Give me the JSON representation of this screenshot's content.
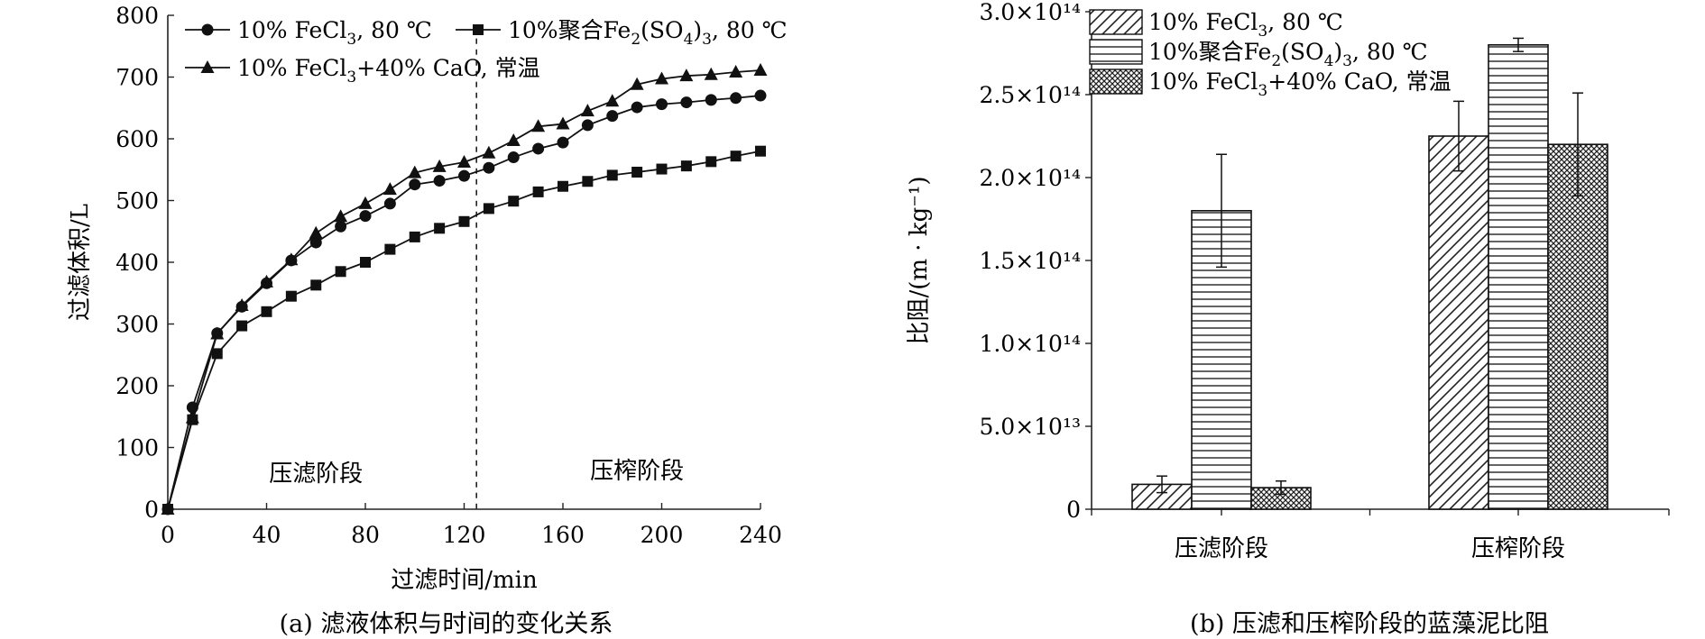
{
  "chart_data": [
    {
      "type": "line",
      "caption": "(a) 滤液体积与时间的变化关系",
      "xlabel": "过滤时间/min",
      "ylabel": "过滤体积/L",
      "xlim": [
        0,
        240
      ],
      "ylim": [
        0,
        800
      ],
      "xticks": [
        "0",
        "40",
        "80",
        "120",
        "160",
        "200",
        "240"
      ],
      "yticks": [
        "0",
        "100",
        "200",
        "300",
        "400",
        "500",
        "600",
        "700",
        "800"
      ],
      "divider_x": 125,
      "stage_labels": [
        "压滤阶段",
        "压榨阶段"
      ],
      "x": [
        0,
        10,
        20,
        30,
        40,
        50,
        60,
        70,
        80,
        90,
        100,
        110,
        120,
        130,
        140,
        150,
        160,
        170,
        180,
        190,
        200,
        210,
        220,
        230,
        240
      ],
      "series": [
        {
          "name": "10% FeCl3, 80 ℃",
          "legend": {
            "main": "10% FeCl",
            "sub": "3",
            "rest": ", 80 ℃"
          },
          "marker": "circle",
          "values": [
            0,
            165,
            285,
            328,
            366,
            403,
            432,
            458,
            475,
            495,
            526,
            532,
            540,
            553,
            570,
            584,
            594,
            622,
            637,
            651,
            656,
            659,
            663,
            666,
            670
          ]
        },
        {
          "name": "10%聚合Fe2(SO4)3, 80 ℃",
          "legend": {
            "p1": "10%聚合Fe",
            "s1": "2",
            "p2": "(SO",
            "s2": "4",
            "p3": ")",
            "s3": "3",
            "p4": ", 80 ℃"
          },
          "marker": "square",
          "values": [
            0,
            145,
            252,
            297,
            320,
            345,
            363,
            385,
            400,
            421,
            441,
            455,
            466,
            487,
            499,
            514,
            523,
            531,
            541,
            546,
            551,
            556,
            563,
            572,
            580
          ]
        },
        {
          "name": "10% FeCl3+40% CaO, 常温",
          "legend": {
            "main": "10% FeCl",
            "sub": "3",
            "rest": "+40% CaO, 常温"
          },
          "marker": "triangle",
          "values": [
            0,
            148,
            284,
            330,
            368,
            404,
            447,
            474,
            495,
            518,
            545,
            555,
            562,
            577,
            597,
            620,
            624,
            645,
            661,
            688,
            697,
            702,
            704,
            708,
            711
          ]
        }
      ]
    },
    {
      "type": "bar",
      "caption": "(b) 压滤和压榨阶段的蓝藻泥比阻",
      "ylabel": "比阻/(m · kg⁻¹)",
      "ylim": [
        0,
        300000000000000.0
      ],
      "yticks": [
        "0",
        "5.0×10¹³",
        "1.0×10¹⁴",
        "1.5×10¹⁴",
        "2.0×10¹⁴",
        "2.5×10¹⁴",
        "3.0×10¹⁴"
      ],
      "categories": [
        "压滤阶段",
        "压榨阶段"
      ],
      "series": [
        {
          "name": "10% FeCl3, 80 ℃",
          "legend": {
            "main": "10% FeCl",
            "sub": "3",
            "rest": ", 80 ℃"
          },
          "pattern": "diagonal",
          "values": [
            15000000000000.0,
            225000000000000.0
          ],
          "errors": [
            5000000000000.0,
            21000000000000.0
          ]
        },
        {
          "name": "10%聚合Fe2(SO4)3, 80 ℃",
          "legend": {
            "p1": "10%聚合Fe",
            "s1": "2",
            "p2": "(SO",
            "s2": "4",
            "p3": ")",
            "s3": "3",
            "p4": ", 80 ℃"
          },
          "pattern": "horizontal",
          "values": [
            180000000000000.0,
            280000000000000.0
          ],
          "errors": [
            34000000000000.0,
            4000000000000.0
          ]
        },
        {
          "name": "10% FeCl3+40% CaO, 常温",
          "legend": {
            "main": "10% FeCl",
            "sub": "3",
            "rest": "+40% CaO, 常温"
          },
          "pattern": "crosshatch",
          "values": [
            13000000000000.0,
            220000000000000.0
          ],
          "errors": [
            4000000000000.0,
            31000000000000.0
          ]
        }
      ]
    }
  ]
}
